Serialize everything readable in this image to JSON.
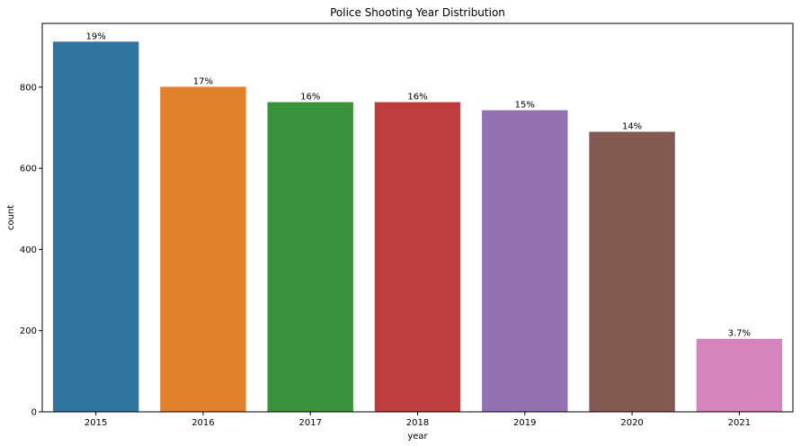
{
  "chart_data": {
    "type": "bar",
    "title": "Police Shooting Year Distribution",
    "xlabel": "year",
    "ylabel": "count",
    "categories": [
      "2015",
      "2016",
      "2017",
      "2018",
      "2019",
      "2020",
      "2021"
    ],
    "values": [
      912,
      801,
      763,
      763,
      743,
      690,
      180
    ],
    "data_labels": [
      "19%",
      "17%",
      "16%",
      "16%",
      "15%",
      "14%",
      "3.7%"
    ],
    "colors": [
      "#3274a1",
      "#e1812c",
      "#3a923a",
      "#c03d3e",
      "#9372b2",
      "#845b53",
      "#d684bd"
    ],
    "yticks": [
      0,
      200,
      400,
      600,
      800
    ],
    "ylim": [
      0,
      957
    ],
    "grid": false,
    "legend": "none"
  }
}
